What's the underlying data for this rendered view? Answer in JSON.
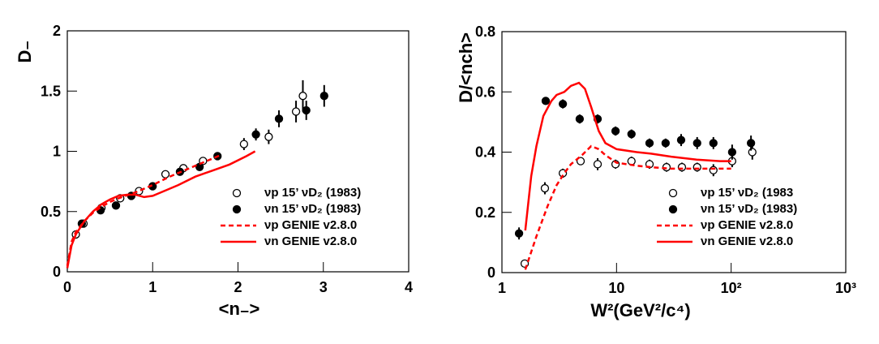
{
  "chart_data": [
    {
      "type": "scatter",
      "xlabel": "<n₋>",
      "ylabel": "D₋",
      "xlim": [
        0,
        4
      ],
      "ylim": [
        0,
        2
      ],
      "xticks": [
        0,
        1,
        2,
        3,
        4
      ],
      "yticks": [
        0,
        0.5,
        1,
        1.5,
        2
      ],
      "legend": "lower-right",
      "series": [
        {
          "name": "νp 15’ νD₂ (1983)",
          "style": "open-marker",
          "color": "#000000",
          "x": [
            0.1,
            0.19,
            0.4,
            0.62,
            0.84,
            1.15,
            1.36,
            1.59,
            2.07,
            2.36,
            2.68,
            2.76
          ],
          "values": [
            0.31,
            0.4,
            0.53,
            0.61,
            0.67,
            0.81,
            0.86,
            0.92,
            1.06,
            1.12,
            1.33,
            1.46
          ],
          "errors": [
            0.02,
            0.02,
            0.02,
            0.02,
            0.02,
            0.03,
            0.03,
            0.03,
            0.05,
            0.06,
            0.09,
            0.13
          ]
        },
        {
          "name": "νn 15’ νD₂ (1983)",
          "style": "filled-marker",
          "color": "#000000",
          "x": [
            0.17,
            0.39,
            0.57,
            0.75,
            1.0,
            1.32,
            1.55,
            1.76,
            2.21,
            2.48,
            2.8,
            3.01
          ],
          "values": [
            0.4,
            0.51,
            0.55,
            0.63,
            0.71,
            0.83,
            0.87,
            0.96,
            1.14,
            1.27,
            1.34,
            1.46
          ],
          "errors": [
            0.02,
            0.02,
            0.02,
            0.02,
            0.02,
            0.03,
            0.03,
            0.03,
            0.05,
            0.07,
            0.08,
            0.09
          ]
        },
        {
          "name": "νp GENIE v2.8.0",
          "style": "dashed-line",
          "color": "#ff0000",
          "x": [
            0,
            0.05,
            0.1,
            0.2,
            0.3,
            0.4,
            0.5,
            0.6,
            0.8,
            1.0,
            1.2,
            1.4,
            1.6,
            1.8
          ],
          "values": [
            0.05,
            0.25,
            0.33,
            0.42,
            0.49,
            0.54,
            0.58,
            0.61,
            0.66,
            0.72,
            0.79,
            0.85,
            0.91,
            0.97
          ]
        },
        {
          "name": "νn GENIE v2.8.0",
          "style": "solid-line",
          "color": "#ff0000",
          "x": [
            0,
            0.05,
            0.1,
            0.2,
            0.3,
            0.4,
            0.5,
            0.6,
            0.7,
            0.8,
            0.9,
            1.0,
            1.1,
            1.3,
            1.5,
            1.7,
            1.9,
            2.1,
            2.2
          ],
          "values": [
            0.03,
            0.22,
            0.31,
            0.42,
            0.5,
            0.56,
            0.6,
            0.63,
            0.64,
            0.64,
            0.62,
            0.63,
            0.66,
            0.72,
            0.79,
            0.84,
            0.89,
            0.96,
            1.0
          ]
        }
      ]
    },
    {
      "type": "scatter",
      "xlabel": "W²(GeV²/c⁴)",
      "ylabel": "D/<nch>",
      "xlog": true,
      "xlim": [
        1,
        1000
      ],
      "ylim": [
        0,
        0.8
      ],
      "xticks": [
        1,
        10,
        {
          "value": 100,
          "label": "10²"
        },
        {
          "value": 1000,
          "label": "10³"
        }
      ],
      "yticks": [
        0,
        0.2,
        0.4,
        0.6,
        0.8
      ],
      "legend": "lower-right",
      "series": [
        {
          "name": "νp 15’ νD₂ (1983",
          "style": "open-marker",
          "color": "#000000",
          "x": [
            1.58,
            2.37,
            3.4,
            4.86,
            6.84,
            9.8,
            13.5,
            19.4,
            27.3,
            37.2,
            50.5,
            70,
            102,
            153
          ],
          "values": [
            0.03,
            0.28,
            0.33,
            0.37,
            0.36,
            0.36,
            0.37,
            0.36,
            0.35,
            0.35,
            0.35,
            0.34,
            0.37,
            0.4
          ],
          "errors": [
            0.01,
            0.02,
            0.015,
            0.01,
            0.02,
            0.015,
            0.015,
            0.015,
            0.015,
            0.015,
            0.015,
            0.02,
            0.02,
            0.025
          ]
        },
        {
          "name": "νn 15’ νD₂ (1983)",
          "style": "filled-marker",
          "color": "#000000",
          "x": [
            1.41,
            2.41,
            3.4,
            4.77,
            6.84,
            9.8,
            13.5,
            19.4,
            26.8,
            36.6,
            50.5,
            70,
            102,
            149
          ],
          "values": [
            0.13,
            0.57,
            0.56,
            0.51,
            0.51,
            0.47,
            0.46,
            0.43,
            0.43,
            0.44,
            0.43,
            0.43,
            0.4,
            0.43
          ],
          "errors": [
            0.02,
            0.01,
            0.015,
            0.015,
            0.015,
            0.015,
            0.015,
            0.015,
            0.015,
            0.02,
            0.02,
            0.02,
            0.025,
            0.025
          ]
        },
        {
          "name": "νp GENIE v2.8.0",
          "style": "dashed-line",
          "color": "#ff0000",
          "x": [
            1.6,
            2,
            2.5,
            3,
            3.5,
            4,
            5,
            6,
            7,
            8,
            10,
            15,
            20,
            30,
            50,
            100
          ],
          "values": [
            0.01,
            0.12,
            0.22,
            0.29,
            0.33,
            0.36,
            0.39,
            0.42,
            0.41,
            0.39,
            0.365,
            0.355,
            0.35,
            0.345,
            0.345,
            0.345
          ]
        },
        {
          "name": "νn GENIE v2.8.0",
          "style": "solid-line",
          "color": "#ff0000",
          "x": [
            1.6,
            1.8,
            2,
            2.3,
            2.7,
            3,
            3.5,
            4,
            4.7,
            5.3,
            6,
            7,
            8,
            10,
            15,
            20,
            30,
            50,
            80,
            100
          ],
          "values": [
            0.14,
            0.32,
            0.42,
            0.52,
            0.57,
            0.59,
            0.6,
            0.62,
            0.63,
            0.61,
            0.55,
            0.47,
            0.43,
            0.41,
            0.4,
            0.395,
            0.385,
            0.375,
            0.37,
            0.37
          ]
        }
      ]
    }
  ]
}
